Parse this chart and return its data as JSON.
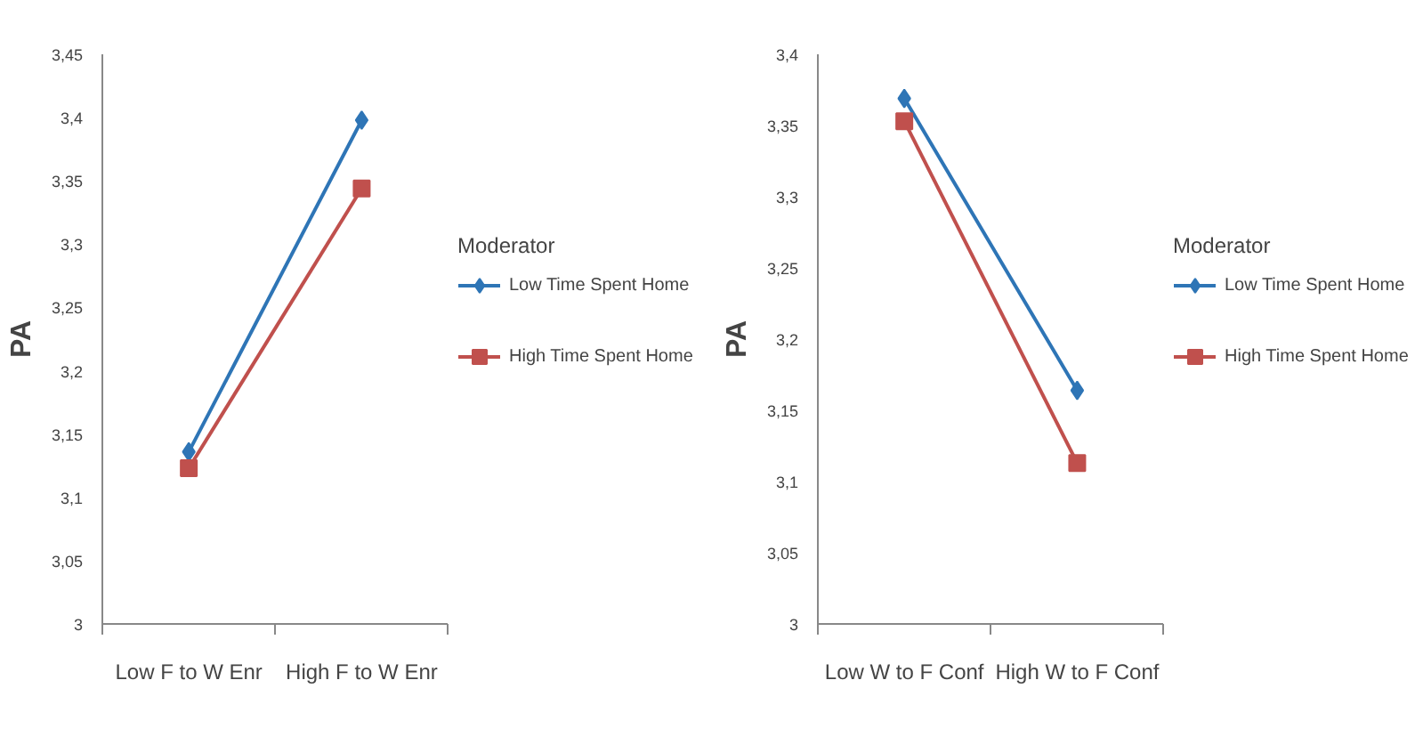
{
  "chart_data": [
    {
      "type": "line",
      "ylabel": "PA",
      "legend_title": "Moderator",
      "legend": "right",
      "grid": false,
      "categories": [
        "Low F to W Enr",
        "High F to W Enr"
      ],
      "ylim": [
        3,
        3.45
      ],
      "yticks": [
        {
          "value": 3,
          "label": "3"
        },
        {
          "value": 3.05,
          "label": "3,05"
        },
        {
          "value": 3.1,
          "label": "3,1"
        },
        {
          "value": 3.15,
          "label": "3,15"
        },
        {
          "value": 3.2,
          "label": "3,2"
        },
        {
          "value": 3.25,
          "label": "3,25"
        },
        {
          "value": 3.3,
          "label": "3,3"
        },
        {
          "value": 3.35,
          "label": "3,35"
        },
        {
          "value": 3.4,
          "label": "3,4"
        },
        {
          "value": 3.45,
          "label": "3,45"
        }
      ],
      "series": [
        {
          "name": "Low Time Spent Home",
          "color": "#2e75b6",
          "marker": "diamond",
          "values": [
            3.136,
            3.398
          ]
        },
        {
          "name": "High Time Spent Home",
          "color": "#c0504d",
          "marker": "square",
          "values": [
            3.123,
            3.344
          ]
        }
      ]
    },
    {
      "type": "line",
      "ylabel": "PA",
      "legend_title": "Moderator",
      "legend": "right",
      "grid": false,
      "categories": [
        "Low W to F Conf",
        "High W to F Conf"
      ],
      "ylim": [
        3,
        3.4
      ],
      "yticks": [
        {
          "value": 3,
          "label": "3"
        },
        {
          "value": 3.05,
          "label": "3,05"
        },
        {
          "value": 3.1,
          "label": "3,1"
        },
        {
          "value": 3.15,
          "label": "3,15"
        },
        {
          "value": 3.2,
          "label": "3,2"
        },
        {
          "value": 3.25,
          "label": "3,25"
        },
        {
          "value": 3.3,
          "label": "3,3"
        },
        {
          "value": 3.35,
          "label": "3,35"
        },
        {
          "value": 3.4,
          "label": "3,4"
        }
      ],
      "series": [
        {
          "name": "Low Time Spent Home",
          "color": "#2e75b6",
          "marker": "diamond",
          "values": [
            3.369,
            3.164
          ]
        },
        {
          "name": "High Time Spent Home",
          "color": "#c0504d",
          "marker": "square",
          "values": [
            3.353,
            3.113
          ]
        }
      ]
    }
  ]
}
